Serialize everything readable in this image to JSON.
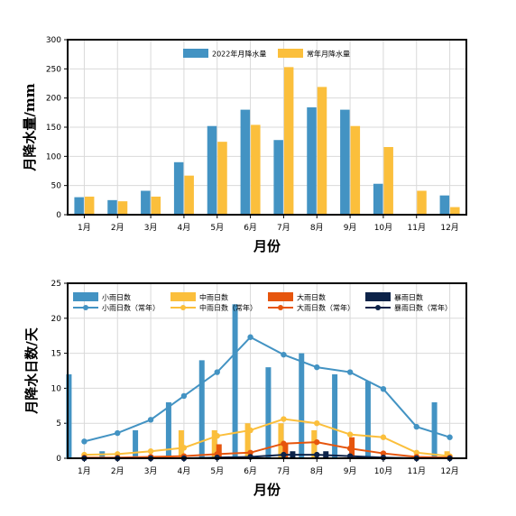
{
  "chart_data": [
    {
      "type": "bar",
      "xlabel": "月份",
      "ylabel": "月降水量/mm",
      "ylim": [
        0,
        300
      ],
      "yticks": [
        0,
        50,
        100,
        150,
        200,
        250,
        300
      ],
      "categories": [
        "1月",
        "2月",
        "3月",
        "4月",
        "5月",
        "6月",
        "7月",
        "8月",
        "9月",
        "10月",
        "11月",
        "12月"
      ],
      "grid": true,
      "legend_position": "top-center",
      "series": [
        {
          "name": "2022年月降水量",
          "color": "#4393c3",
          "values": [
            30,
            25,
            41,
            90,
            152,
            180,
            128,
            184,
            180,
            53,
            0,
            33
          ]
        },
        {
          "name": "常年月降水量",
          "color": "#fbbf3c",
          "values": [
            31,
            23,
            31,
            67,
            125,
            154,
            253,
            219,
            152,
            116,
            41,
            13
          ]
        }
      ]
    },
    {
      "type": "bar",
      "xlabel": "月份",
      "ylabel": "月降水日数/天",
      "ylim": [
        0,
        25
      ],
      "yticks": [
        0,
        5,
        10,
        15,
        20,
        25
      ],
      "categories": [
        "1月",
        "2月",
        "3月",
        "4月",
        "5月",
        "6月",
        "7月",
        "8月",
        "9月",
        "10月",
        "11月",
        "12月"
      ],
      "grid": true,
      "legend_position": "top",
      "bar_series": [
        {
          "name": "小雨日数",
          "color": "#4393c3",
          "values": [
            12,
            1,
            4,
            8,
            14,
            22,
            13,
            15,
            12,
            11,
            0,
            8
          ]
        },
        {
          "name": "中雨日数",
          "color": "#fbbf3c",
          "values": [
            0,
            0,
            0,
            4,
            4,
            5,
            5,
            4,
            0,
            0,
            0,
            1
          ]
        },
        {
          "name": "大雨日数",
          "color": "#e6550d",
          "values": [
            0,
            0,
            0,
            0,
            2,
            0,
            2,
            0,
            3,
            0,
            0,
            0
          ]
        },
        {
          "name": "暴雨日数",
          "color": "#0d2349",
          "values": [
            0,
            0,
            0,
            0,
            0,
            0,
            1,
            1,
            0,
            0,
            0,
            0
          ]
        }
      ],
      "line_series": [
        {
          "name": "小雨日数（常年）",
          "color": "#4393c3",
          "values": [
            2.4,
            3.6,
            5.5,
            8.9,
            12.3,
            17.3,
            14.8,
            13.0,
            12.3,
            9.9,
            4.5,
            3.0
          ]
        },
        {
          "name": "中雨日数（常年）",
          "color": "#fbbf3c",
          "values": [
            0.5,
            0.6,
            1.0,
            1.5,
            3.2,
            4.0,
            5.6,
            5.0,
            3.4,
            3.0,
            0.8,
            0.3
          ]
        },
        {
          "name": "大雨日数（常年）",
          "color": "#e6550d",
          "values": [
            0.1,
            0.1,
            0.2,
            0.3,
            0.6,
            0.8,
            2.1,
            2.3,
            1.4,
            0.7,
            0.2,
            0.1
          ]
        },
        {
          "name": "暴雨日数（常年）",
          "color": "#0d2349",
          "values": [
            0.0,
            0.0,
            0.0,
            0.0,
            0.1,
            0.2,
            0.5,
            0.5,
            0.3,
            0.1,
            0.0,
            0.0
          ]
        }
      ]
    }
  ]
}
